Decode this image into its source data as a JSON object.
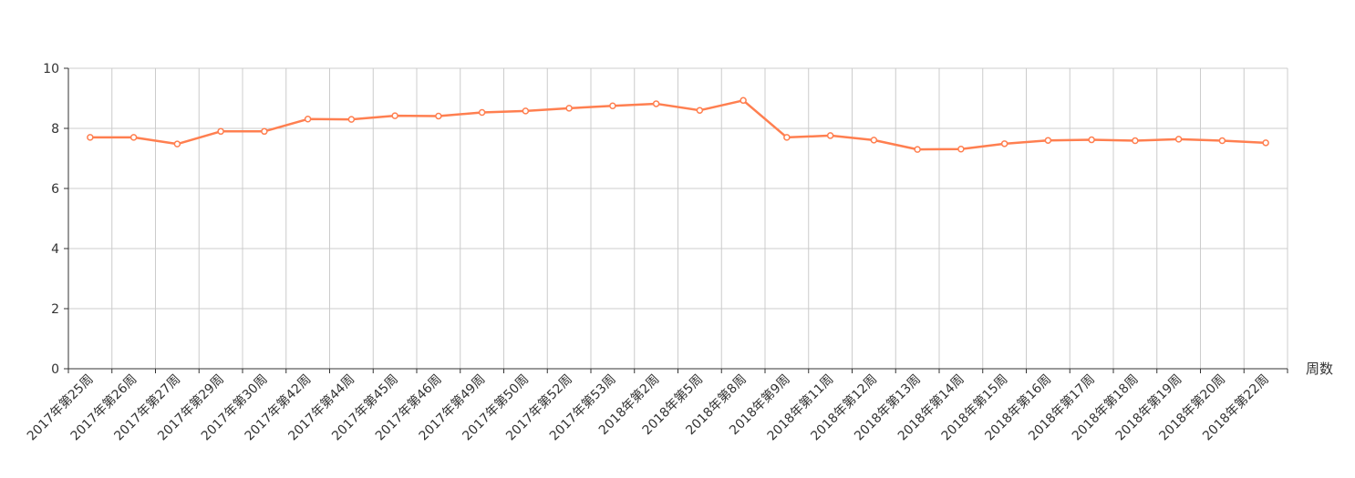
{
  "chart_data": {
    "type": "line",
    "title": "",
    "xlabel": "周数",
    "ylabel": "",
    "ylim": [
      0,
      10
    ],
    "yticks": [
      0,
      2,
      4,
      6,
      8,
      10
    ],
    "grid": true,
    "legend": "none",
    "categories": [
      "2017年第25周",
      "2017年第26周",
      "2017年第27周",
      "2017年第29周",
      "2017年第30周",
      "2017年第42周",
      "2017年第44周",
      "2017年第45周",
      "2017年第46周",
      "2017年第49周",
      "2017年第50周",
      "2017年第52周",
      "2017年第53周",
      "2018年第2周",
      "2018年第5周",
      "2018年第8周",
      "2018年第9周",
      "2018年第11周",
      "2018年第12周",
      "2018年第13周",
      "2018年第14周",
      "2018年第15周",
      "2018年第16周",
      "2018年第17周",
      "2018年第18周",
      "2018年第19周",
      "2018年第20周",
      "2018年第22周"
    ],
    "series": [
      {
        "color": "#ff7f50",
        "values": [
          7.7,
          7.7,
          7.48,
          7.9,
          7.9,
          8.31,
          8.3,
          8.42,
          8.41,
          8.53,
          8.58,
          8.67,
          8.75,
          8.82,
          8.6,
          8.93,
          7.7,
          7.76,
          7.61,
          7.3,
          7.31,
          7.49,
          7.6,
          7.62,
          7.59,
          7.64,
          7.59,
          7.52
        ]
      }
    ]
  }
}
